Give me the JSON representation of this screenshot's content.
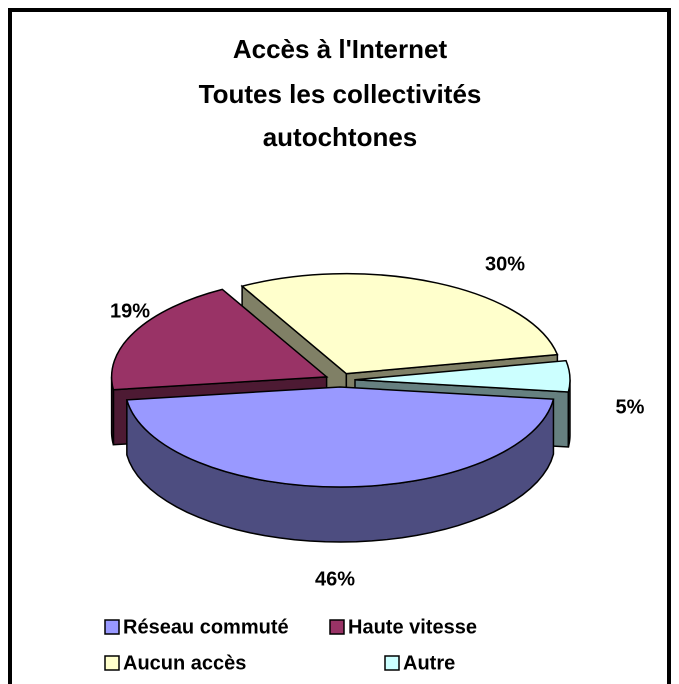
{
  "chart_data": {
    "type": "pie",
    "title": [
      "Accès à l'Internet",
      "Toutes les collectivités",
      "autochtones"
    ],
    "categories": [
      "Réseau commuté",
      "Haute vitesse",
      "Aucun accès",
      "Autre"
    ],
    "values": [
      46,
      19,
      30,
      5
    ],
    "value_labels": [
      "46%",
      "19%",
      "30%",
      "5%"
    ],
    "colors": [
      "#9999ff",
      "#993366",
      "#ffffcc",
      "#ccffff"
    ],
    "legend": "bottom"
  }
}
